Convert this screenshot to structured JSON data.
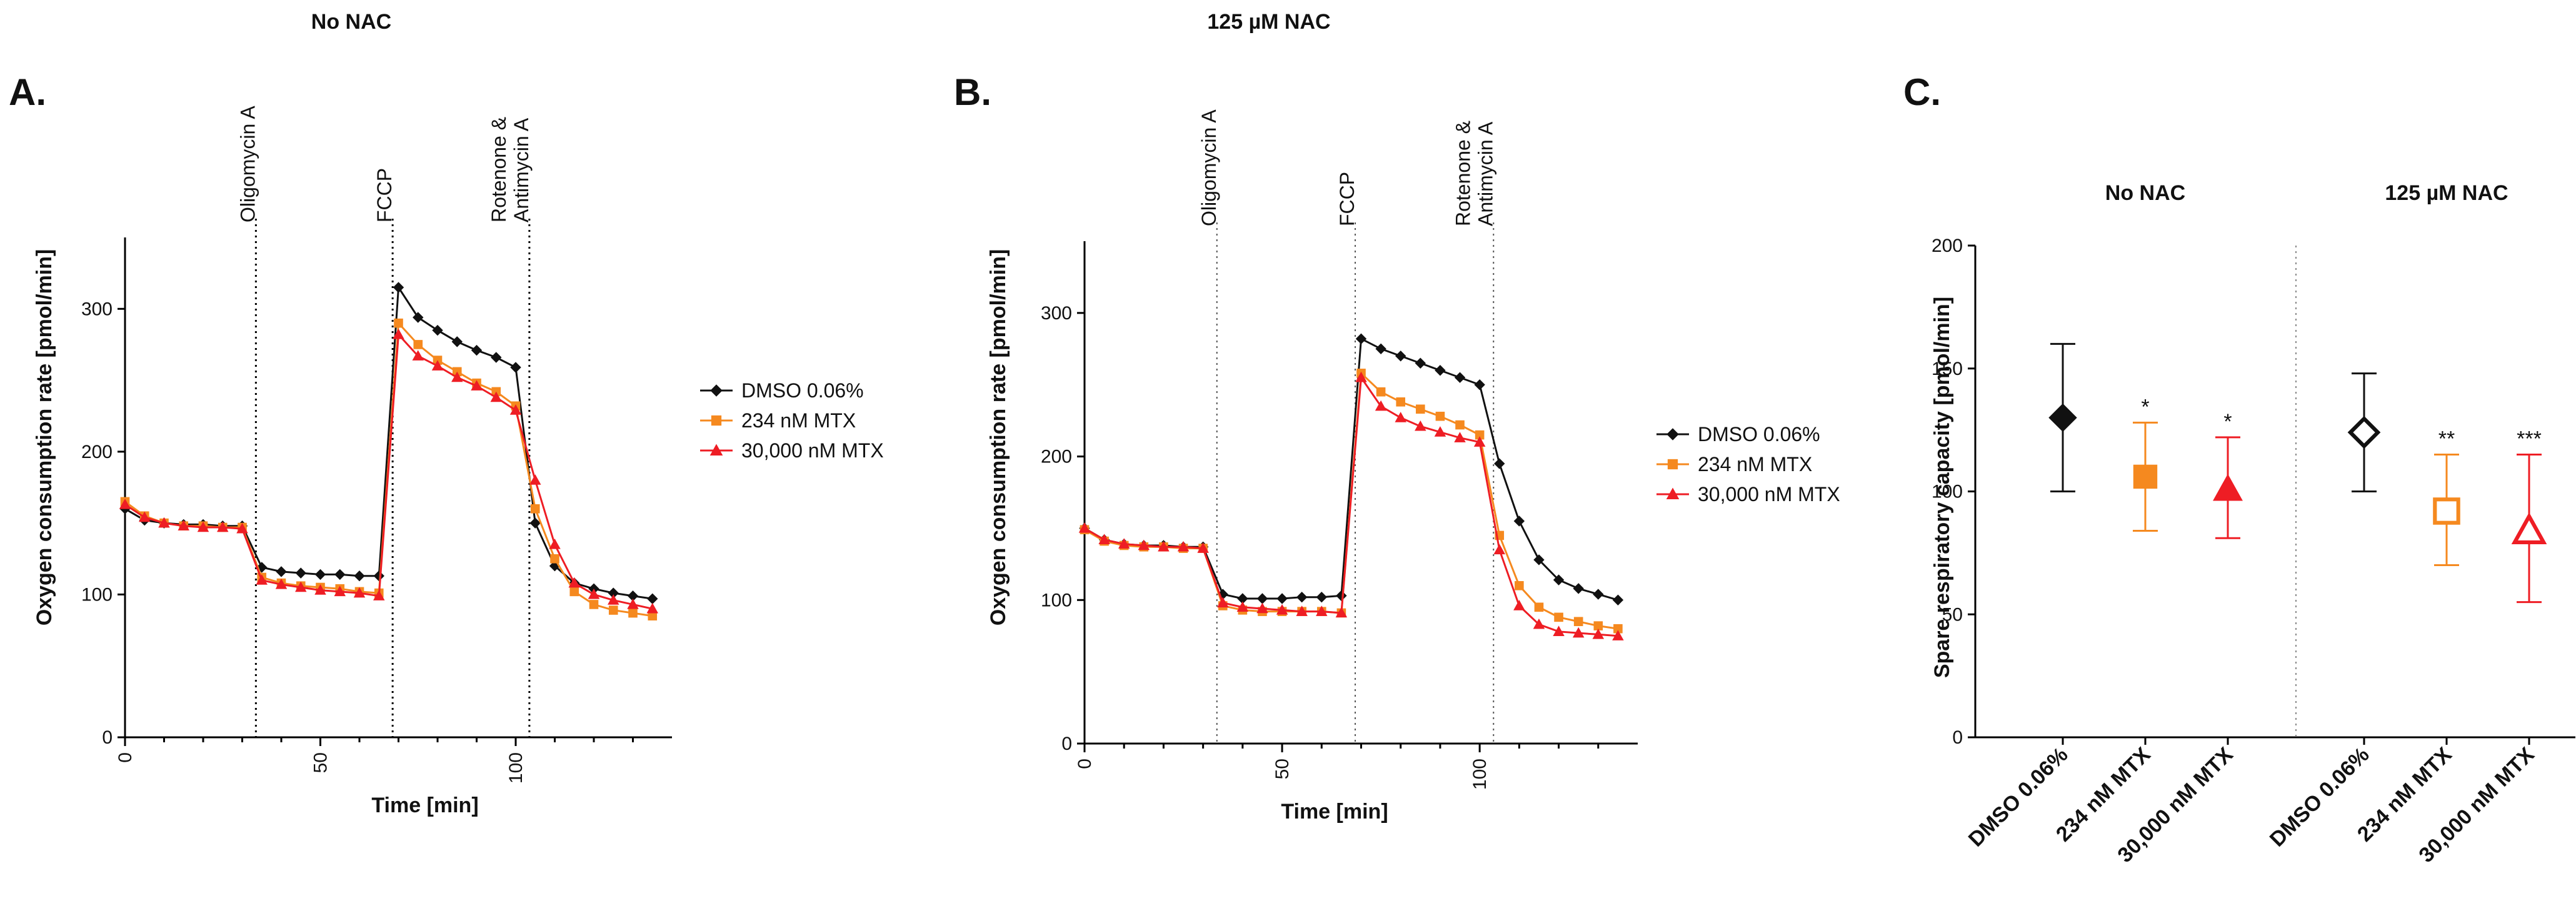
{
  "headers": {
    "no_nac": "No NAC",
    "nac": "125 µM NAC"
  },
  "colors": {
    "dmso": "#111111",
    "mtx234": "#f5891f",
    "mtx30000": "#ee1d24"
  },
  "chart_data": [
    {
      "panel": "A.",
      "type": "line",
      "title": "No NAC",
      "xlabel": "Time [min]",
      "ylabel": "Oxygen consumption rate [pmol/min]",
      "xlim": [
        0,
        140
      ],
      "ylim": [
        0,
        350
      ],
      "xticks": [
        0,
        50,
        100
      ],
      "yticks": [
        0,
        100,
        200,
        300
      ],
      "injections": [
        {
          "time": 33.5,
          "label": "Oligomycin A"
        },
        {
          "time": 68.5,
          "label": "FCCP"
        },
        {
          "time": 103.5,
          "label": "Rotenone & Antimycin A",
          "label_lines": [
            "Rotenone &",
            "Antimycin A"
          ]
        }
      ],
      "x": [
        0,
        5,
        10,
        15,
        20,
        25,
        30,
        35,
        40,
        45,
        50,
        55,
        60,
        65,
        70,
        75,
        80,
        85,
        90,
        95,
        100,
        105,
        110,
        115,
        120,
        125,
        130,
        135
      ],
      "series": [
        {
          "name": "DMSO 0.06%",
          "marker": "diamond",
          "values": [
            160,
            152,
            150,
            149,
            149,
            148,
            148,
            119,
            116,
            115,
            114,
            114,
            113,
            113,
            315,
            294,
            285,
            277,
            271,
            266,
            259,
            150,
            120,
            108,
            104,
            101,
            99,
            97
          ]
        },
        {
          "name": "234 nM MTX",
          "marker": "square",
          "values": [
            165,
            155,
            150,
            148,
            148,
            147,
            147,
            112,
            108,
            106,
            105,
            104,
            102,
            101,
            290,
            275,
            264,
            256,
            248,
            242,
            232,
            160,
            125,
            102,
            93,
            89,
            87,
            85
          ]
        },
        {
          "name": "30,000 nM MTX",
          "marker": "triangle",
          "values": [
            163,
            154,
            150,
            148,
            147,
            147,
            146,
            110,
            107,
            105,
            103,
            102,
            101,
            99,
            282,
            267,
            260,
            252,
            246,
            238,
            229,
            180,
            135,
            108,
            100,
            96,
            93,
            90
          ]
        }
      ]
    },
    {
      "panel": "B.",
      "type": "line",
      "title": "125 µM NAC",
      "xlabel": "Time [min]",
      "ylabel": "Oxygen consumption rate [pmol/min]",
      "xlim": [
        0,
        140
      ],
      "ylim": [
        0,
        350
      ],
      "xticks": [
        0,
        50,
        100
      ],
      "yticks": [
        0,
        100,
        200,
        300
      ],
      "injections": [
        {
          "time": 33.5,
          "label": "Oligomycin A"
        },
        {
          "time": 68.5,
          "label": "FCCP"
        },
        {
          "time": 103.5,
          "label": "Rotenone & Antimycin A",
          "label_lines": [
            "Rotenone &",
            "Antimycin A"
          ]
        }
      ],
      "x": [
        0,
        5,
        10,
        15,
        20,
        25,
        30,
        35,
        40,
        45,
        50,
        55,
        60,
        65,
        70,
        75,
        80,
        85,
        90,
        95,
        100,
        105,
        110,
        115,
        120,
        125,
        130,
        135
      ],
      "series": [
        {
          "name": "DMSO 0.06%",
          "marker": "diamond",
          "values": [
            150,
            142,
            139,
            138,
            138,
            137,
            137,
            104,
            101,
            101,
            101,
            102,
            102,
            103,
            282,
            275,
            270,
            265,
            260,
            255,
            250,
            195,
            155,
            128,
            114,
            108,
            104,
            100
          ]
        },
        {
          "name": "234 nM MTX",
          "marker": "square",
          "values": [
            149,
            141,
            138,
            137,
            137,
            136,
            136,
            96,
            93,
            92,
            92,
            92,
            92,
            91,
            258,
            245,
            238,
            233,
            228,
            222,
            215,
            145,
            110,
            95,
            88,
            85,
            82,
            80
          ]
        },
        {
          "name": "30,000 nM MTX",
          "marker": "triangle",
          "values": [
            150,
            142,
            139,
            138,
            137,
            137,
            136,
            98,
            95,
            94,
            93,
            92,
            92,
            91,
            255,
            235,
            227,
            221,
            217,
            213,
            210,
            135,
            96,
            83,
            78,
            77,
            76,
            75
          ]
        }
      ]
    },
    {
      "panel": "C.",
      "type": "scatter",
      "title": "Spare respiratory capacity",
      "ylabel": "Spare respiratory capacity [pmol/min]",
      "ylim": [
        0,
        200
      ],
      "yticks": [
        0,
        50,
        100,
        150,
        200
      ],
      "groups": [
        "No NAC",
        "125 µM NAC"
      ],
      "categories": [
        "DMSO 0.06%",
        "234 nM MTX",
        "30,000 nM MTX",
        "DMSO 0.06%",
        "234 nM MTX",
        "30,000 nM MTX"
      ],
      "points": [
        {
          "group": "No NAC",
          "category": "DMSO 0.06%",
          "mean": 130,
          "low": 100,
          "high": 160,
          "marker": "diamond",
          "filled": true,
          "color": "#111111",
          "sig": ""
        },
        {
          "group": "No NAC",
          "category": "234 nM MTX",
          "mean": 106,
          "low": 84,
          "high": 128,
          "marker": "square",
          "filled": true,
          "color": "#f5891f",
          "sig": "*"
        },
        {
          "group": "No NAC",
          "category": "30,000 nM MTX",
          "mean": 101,
          "low": 81,
          "high": 122,
          "marker": "triangle",
          "filled": true,
          "color": "#ee1d24",
          "sig": "*"
        },
        {
          "group": "125 µM NAC",
          "category": "DMSO 0.06%",
          "mean": 124,
          "low": 100,
          "high": 148,
          "marker": "diamond",
          "filled": false,
          "color": "#111111",
          "sig": ""
        },
        {
          "group": "125 µM NAC",
          "category": "234 nM MTX",
          "mean": 92,
          "low": 70,
          "high": 115,
          "marker": "square",
          "filled": false,
          "color": "#f5891f",
          "sig": "**"
        },
        {
          "group": "125 µM NAC",
          "category": "30,000 nM MTX",
          "mean": 84,
          "low": 55,
          "high": 115,
          "marker": "triangle",
          "filled": false,
          "color": "#ee1d24",
          "sig": "***"
        }
      ]
    }
  ]
}
